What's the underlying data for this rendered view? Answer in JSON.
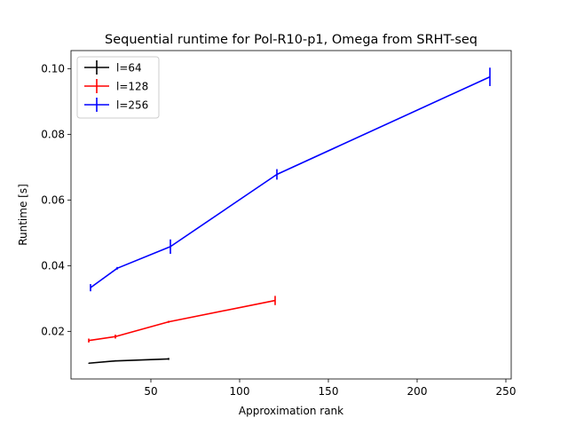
{
  "chart_data": {
    "type": "line",
    "title": "Sequential runtime for Pol-R10-p1, Omega from SRHT-seq",
    "xlabel": "Approximation rank",
    "ylabel": "Runtime [s]",
    "xlim": [
      5,
      253
    ],
    "ylim": [
      0.0055,
      0.1055
    ],
    "xticks": [
      50,
      100,
      150,
      200,
      250
    ],
    "yticks": [
      0.02,
      0.04,
      0.06,
      0.08,
      0.1
    ],
    "ytick_labels": [
      "0.02",
      "0.04",
      "0.06",
      "0.08",
      "0.10"
    ],
    "legend_position": "upper-left",
    "grid": false,
    "series": [
      {
        "name": "l=64",
        "color": "#000000",
        "x": [
          15,
          30,
          60
        ],
        "y": [
          0.0103,
          0.011,
          0.0116
        ],
        "yerr": [
          0.0001,
          0.0002,
          0.0003
        ]
      },
      {
        "name": "l=128",
        "color": "#ff0000",
        "x": [
          15,
          30,
          60,
          120
        ],
        "y": [
          0.0172,
          0.0184,
          0.0229,
          0.0294
        ],
        "yerr": [
          0.0006,
          0.0006,
          0.0003,
          0.0014
        ]
      },
      {
        "name": "l=256",
        "color": "#0000ff",
        "x": [
          16,
          31,
          61,
          121,
          241
        ],
        "y": [
          0.0333,
          0.0392,
          0.0458,
          0.0678,
          0.0975
        ],
        "yerr": [
          0.0011,
          0.0004,
          0.0022,
          0.0016,
          0.0028
        ]
      }
    ]
  }
}
